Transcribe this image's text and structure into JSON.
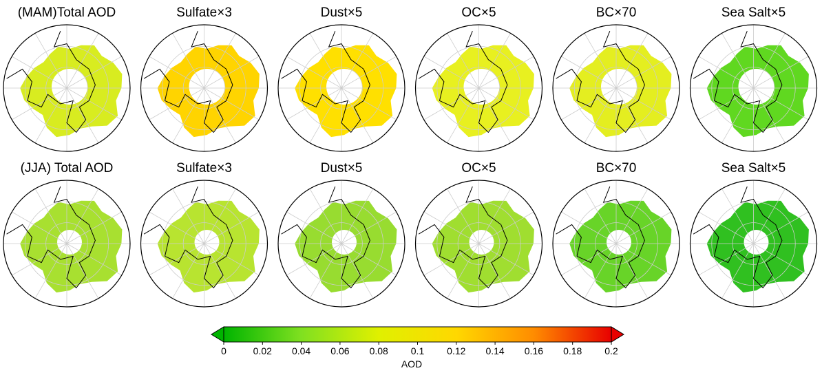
{
  "panels": [
    {
      "title": "(MAM)Total AOD",
      "color": "#d8ec20"
    },
    {
      "title": "Sulfate×3",
      "color": "#ffd400"
    },
    {
      "title": "Dust×5",
      "color": "#ffe000"
    },
    {
      "title": "OC×5",
      "color": "#e8f020"
    },
    {
      "title": "BC×70",
      "color": "#e4ee20"
    },
    {
      "title": "Sea Salt×5",
      "color": "#60d820"
    },
    {
      "title": "(JJA) Total AOD",
      "color": "#a8e030"
    },
    {
      "title": "Sulfate×3",
      "color": "#b8e430"
    },
    {
      "title": "Dust×5",
      "color": "#98dc30"
    },
    {
      "title": "OC×5",
      "color": "#a0de30"
    },
    {
      "title": "BC×70",
      "color": "#68d428"
    },
    {
      "title": "Sea Salt×5",
      "color": "#30c020"
    }
  ],
  "colorbar": {
    "label": "AOD",
    "lim": [
      0,
      0.2
    ],
    "ticks": [
      0,
      0.02,
      0.04,
      0.06,
      0.08,
      0.1,
      0.12,
      0.14,
      0.16,
      0.18,
      0.2
    ],
    "colors": [
      "#00b400",
      "#80e020",
      "#e0f000",
      "#ffd800",
      "#ff8c00",
      "#e80000"
    ]
  }
}
